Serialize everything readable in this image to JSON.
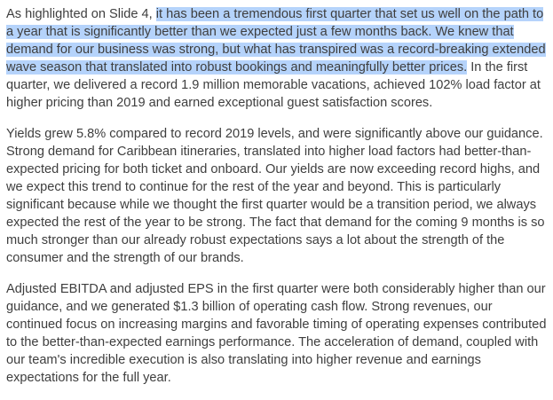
{
  "document": {
    "paragraphs": [
      {
        "before": "As highlighted on Slide 4, ",
        "highlighted": "it has been a tremendous first quarter that set us well on the path to a year that is significantly better than we expected just a few months back. We knew that demand for our business was strong, but what has transpired was a record-breaking extended wave season that translated into robust bookings and meaningfully better prices.",
        "after": " In the first quarter, we delivered a record 1.9 million memorable vacations, achieved 102% load factor at higher pricing than 2019 and earned exceptional guest satisfaction scores."
      },
      {
        "text": "Yields grew 5.8% compared to record 2019 levels, and were significantly above our guidance. Strong demand for Caribbean itineraries, translated into higher load factors had better-than-expected pricing for both ticket and onboard. Our yields are now exceeding record highs, and we expect this trend to continue for the rest of the year and beyond. This is particularly significant because while we thought the first quarter would be a transition period, we always expected the rest of the year to be strong. The fact that demand for the coming 9 months is so much stronger than our already robust expectations says a lot about the strength of the consumer and the strength of our brands."
      },
      {
        "text": "Adjusted EBITDA and adjusted EPS in the first quarter were both considerably higher than our guidance, and we generated $1.3 billion of operating cash flow. Strong revenues, our continued focus on increasing margins and favorable timing of operating expenses contributed to the better-than-expected earnings performance. The acceleration of demand, coupled with our team's incredible execution is also translating into higher revenue and earnings expectations for the full year."
      }
    ],
    "highlight_color": "#b5d3fb",
    "text_color": "#3e3e3e"
  }
}
